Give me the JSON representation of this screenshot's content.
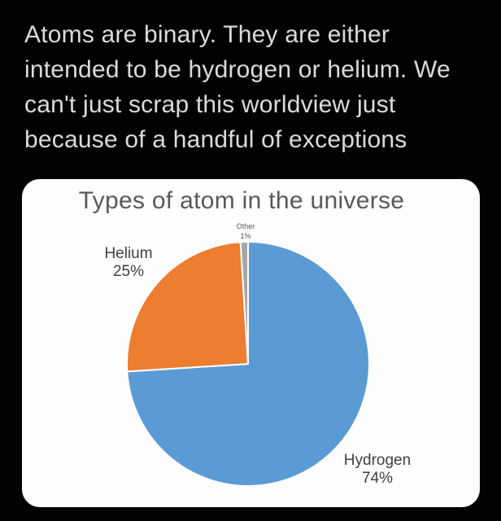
{
  "background_color": "#020202",
  "caption": {
    "lines": [
      "Atoms are binary. They are either",
      "intended to be hydrogen or helium. We",
      "can't just scrap this worldview just",
      "because of a handful of exceptions"
    ],
    "color": "#d9dbdc"
  },
  "card": {
    "background": "#fdfdfd"
  },
  "chart_data": {
    "type": "pie",
    "title": "Types of atom in the universe",
    "slices": [
      {
        "label": "Hydrogen",
        "value": 74,
        "pct": "74%",
        "color": "#5b9bd5"
      },
      {
        "label": "Helium",
        "value": 25,
        "pct": "25%",
        "color": "#ed7d31"
      },
      {
        "label": "Other",
        "value": 1,
        "pct": "1%",
        "color": "#a6a6a6"
      }
    ],
    "start_angle_deg": 0,
    "direction": "clockwise",
    "slice_border_color": "#ffffff",
    "legend_position": "none",
    "labels_outside": true
  }
}
